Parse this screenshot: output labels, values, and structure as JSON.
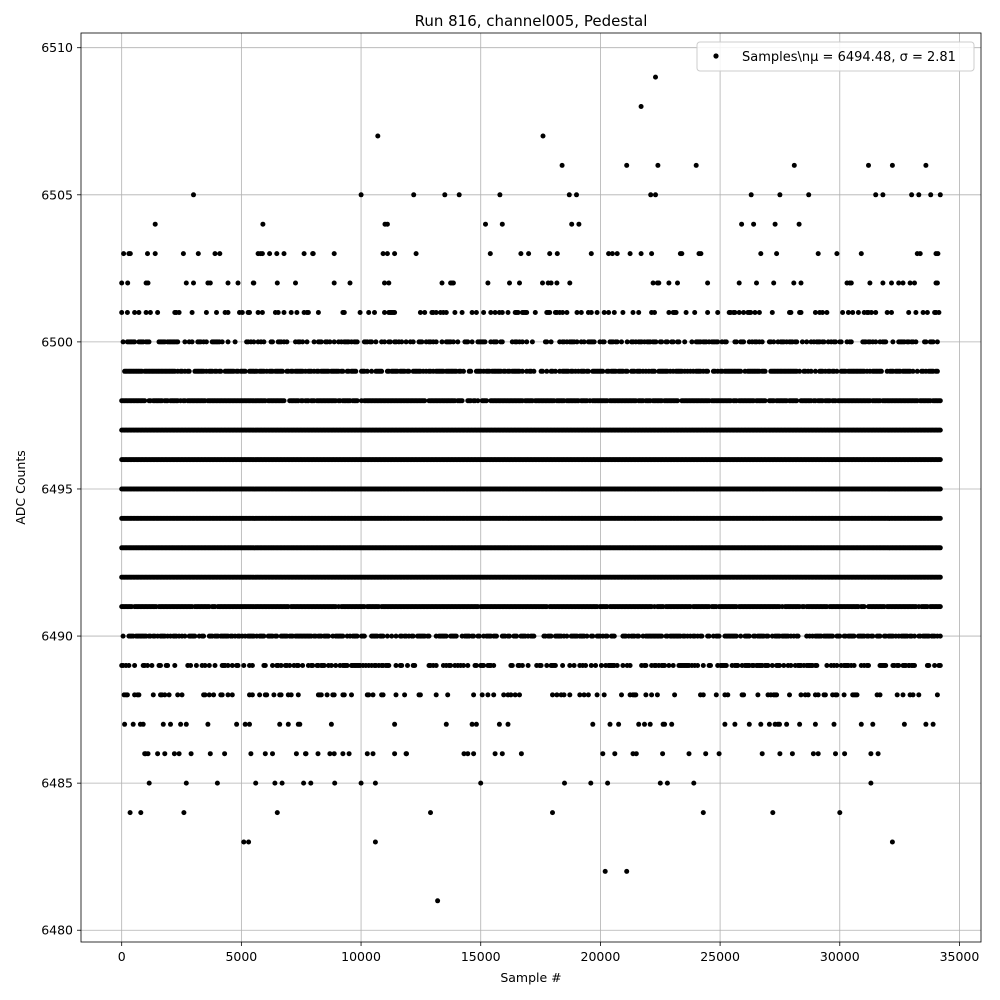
{
  "chart_data": {
    "type": "scatter",
    "title": "Run 816, channel005, Pedestal",
    "xlabel": "Sample #",
    "ylabel": "ADC Counts",
    "xlim": [
      -1700,
      35900
    ],
    "ylim": [
      6479.6,
      6510.5
    ],
    "xticks": [
      0,
      5000,
      10000,
      15000,
      20000,
      25000,
      30000,
      35000
    ],
    "yticks": [
      6480,
      6485,
      6490,
      6495,
      6500,
      6505,
      6510
    ],
    "grid": true,
    "legend_position": "top-right",
    "series": [
      {
        "name": "Samples\\nμ = 6494.48, σ = 2.81",
        "color": "#000000",
        "marker": "circle",
        "x_range": [
          0,
          34200
        ],
        "dense_levels": [
          {
            "y": 6501,
            "frac": 0.22
          },
          {
            "y": 6500,
            "frac": 0.45
          },
          {
            "y": 6499,
            "frac": 0.7
          },
          {
            "y": 6498,
            "frac": 0.9
          },
          {
            "y": 6497,
            "frac": 1.0
          },
          {
            "y": 6496,
            "frac": 1.0
          },
          {
            "y": 6495,
            "frac": 1.0
          },
          {
            "y": 6494,
            "frac": 1.0
          },
          {
            "y": 6493,
            "frac": 1.0
          },
          {
            "y": 6492,
            "frac": 1.0
          },
          {
            "y": 6491,
            "frac": 0.95
          },
          {
            "y": 6490,
            "frac": 0.65
          },
          {
            "y": 6489,
            "frac": 0.4
          },
          {
            "y": 6488,
            "frac": 0.2
          },
          {
            "y": 6502,
            "frac": 0.1
          },
          {
            "y": 6487,
            "frac": 0.07
          },
          {
            "y": 6503,
            "frac": 0.03
          },
          {
            "y": 6486,
            "frac": 0.02
          }
        ],
        "sparse_points": [
          [
            0,
            6501
          ],
          [
            80,
            6503
          ],
          [
            100,
            6488
          ],
          [
            120,
            6487
          ],
          [
            250,
            6502
          ],
          [
            300,
            6503
          ],
          [
            350,
            6484
          ],
          [
            800,
            6484
          ],
          [
            1000,
            6486
          ],
          [
            1100,
            6486
          ],
          [
            1150,
            6485
          ],
          [
            1100,
            6502
          ],
          [
            1400,
            6504
          ],
          [
            1400,
            6503
          ],
          [
            1500,
            6486
          ],
          [
            1800,
            6486
          ],
          [
            2200,
            6486
          ],
          [
            2400,
            6486
          ],
          [
            2600,
            6484
          ],
          [
            2700,
            6502
          ],
          [
            2700,
            6485
          ],
          [
            2900,
            6486
          ],
          [
            3000,
            6505
          ],
          [
            3000,
            6502
          ],
          [
            3200,
            6503
          ],
          [
            3700,
            6502
          ],
          [
            3700,
            6486
          ],
          [
            3900,
            6503
          ],
          [
            4000,
            6485
          ],
          [
            4100,
            6503
          ],
          [
            4300,
            6486
          ],
          [
            5100,
            6483
          ],
          [
            5300,
            6483
          ],
          [
            5400,
            6486
          ],
          [
            5500,
            6502
          ],
          [
            5600,
            6485
          ],
          [
            5800,
            6503
          ],
          [
            5900,
            6504
          ],
          [
            6000,
            6486
          ],
          [
            6300,
            6486
          ],
          [
            6400,
            6485
          ],
          [
            6500,
            6484
          ],
          [
            6500,
            6502
          ],
          [
            6700,
            6485
          ],
          [
            7300,
            6486
          ],
          [
            7600,
            6485
          ],
          [
            7700,
            6486
          ],
          [
            7900,
            6485
          ],
          [
            8000,
            6503
          ],
          [
            8200,
            6486
          ],
          [
            8700,
            6486
          ],
          [
            8900,
            6485
          ],
          [
            9500,
            6486
          ],
          [
            10000,
            6505
          ],
          [
            10000,
            6485
          ],
          [
            10500,
            6486
          ],
          [
            10600,
            6483
          ],
          [
            10600,
            6485
          ],
          [
            10700,
            6507
          ],
          [
            11000,
            6504
          ],
          [
            11100,
            6504
          ],
          [
            11400,
            6503
          ],
          [
            11400,
            6486
          ],
          [
            11900,
            6486
          ],
          [
            12200,
            6505
          ],
          [
            12300,
            6503
          ],
          [
            12900,
            6484
          ],
          [
            13200,
            6481
          ],
          [
            13500,
            6505
          ],
          [
            14100,
            6505
          ],
          [
            14300,
            6486
          ],
          [
            14700,
            6486
          ],
          [
            15000,
            6485
          ],
          [
            15200,
            6504
          ],
          [
            15400,
            6503
          ],
          [
            15800,
            6505
          ],
          [
            15900,
            6486
          ],
          [
            15900,
            6504
          ],
          [
            16700,
            6486
          ],
          [
            17000,
            6503
          ],
          [
            17600,
            6507
          ],
          [
            18000,
            6484
          ],
          [
            18200,
            6503
          ],
          [
            18400,
            6506
          ],
          [
            18500,
            6485
          ],
          [
            18700,
            6505
          ],
          [
            18800,
            6504
          ],
          [
            19000,
            6505
          ],
          [
            19100,
            6504
          ],
          [
            19600,
            6485
          ],
          [
            20100,
            6486
          ],
          [
            20200,
            6482
          ],
          [
            20300,
            6485
          ],
          [
            20500,
            6503
          ],
          [
            20600,
            6486
          ],
          [
            21100,
            6506
          ],
          [
            21100,
            6482
          ],
          [
            21500,
            6486
          ],
          [
            21700,
            6508
          ],
          [
            21700,
            6503
          ],
          [
            22100,
            6505
          ],
          [
            22300,
            6509
          ],
          [
            22300,
            6505
          ],
          [
            22400,
            6506
          ],
          [
            22500,
            6485
          ],
          [
            22600,
            6486
          ],
          [
            22800,
            6485
          ],
          [
            23400,
            6503
          ],
          [
            23700,
            6486
          ],
          [
            23900,
            6485
          ],
          [
            24000,
            6506
          ],
          [
            24200,
            6503
          ],
          [
            24300,
            6484
          ],
          [
            24400,
            6486
          ],
          [
            25900,
            6504
          ],
          [
            26300,
            6505
          ],
          [
            26400,
            6504
          ],
          [
            26700,
            6503
          ],
          [
            27200,
            6484
          ],
          [
            27300,
            6504
          ],
          [
            27500,
            6505
          ],
          [
            27500,
            6486
          ],
          [
            28100,
            6506
          ],
          [
            28300,
            6504
          ],
          [
            28700,
            6505
          ],
          [
            28900,
            6486
          ],
          [
            29100,
            6503
          ],
          [
            30000,
            6484
          ],
          [
            30200,
            6486
          ],
          [
            31200,
            6506
          ],
          [
            31300,
            6485
          ],
          [
            31300,
            6486
          ],
          [
            31500,
            6505
          ],
          [
            31600,
            6486
          ],
          [
            31800,
            6505
          ],
          [
            32200,
            6506
          ],
          [
            32200,
            6483
          ],
          [
            32900,
            6489
          ],
          [
            33000,
            6505
          ],
          [
            33300,
            6505
          ],
          [
            33600,
            6506
          ],
          [
            33800,
            6505
          ],
          [
            34200,
            6505
          ],
          [
            34100,
            6503
          ],
          [
            34200,
            6489
          ]
        ]
      }
    ]
  }
}
